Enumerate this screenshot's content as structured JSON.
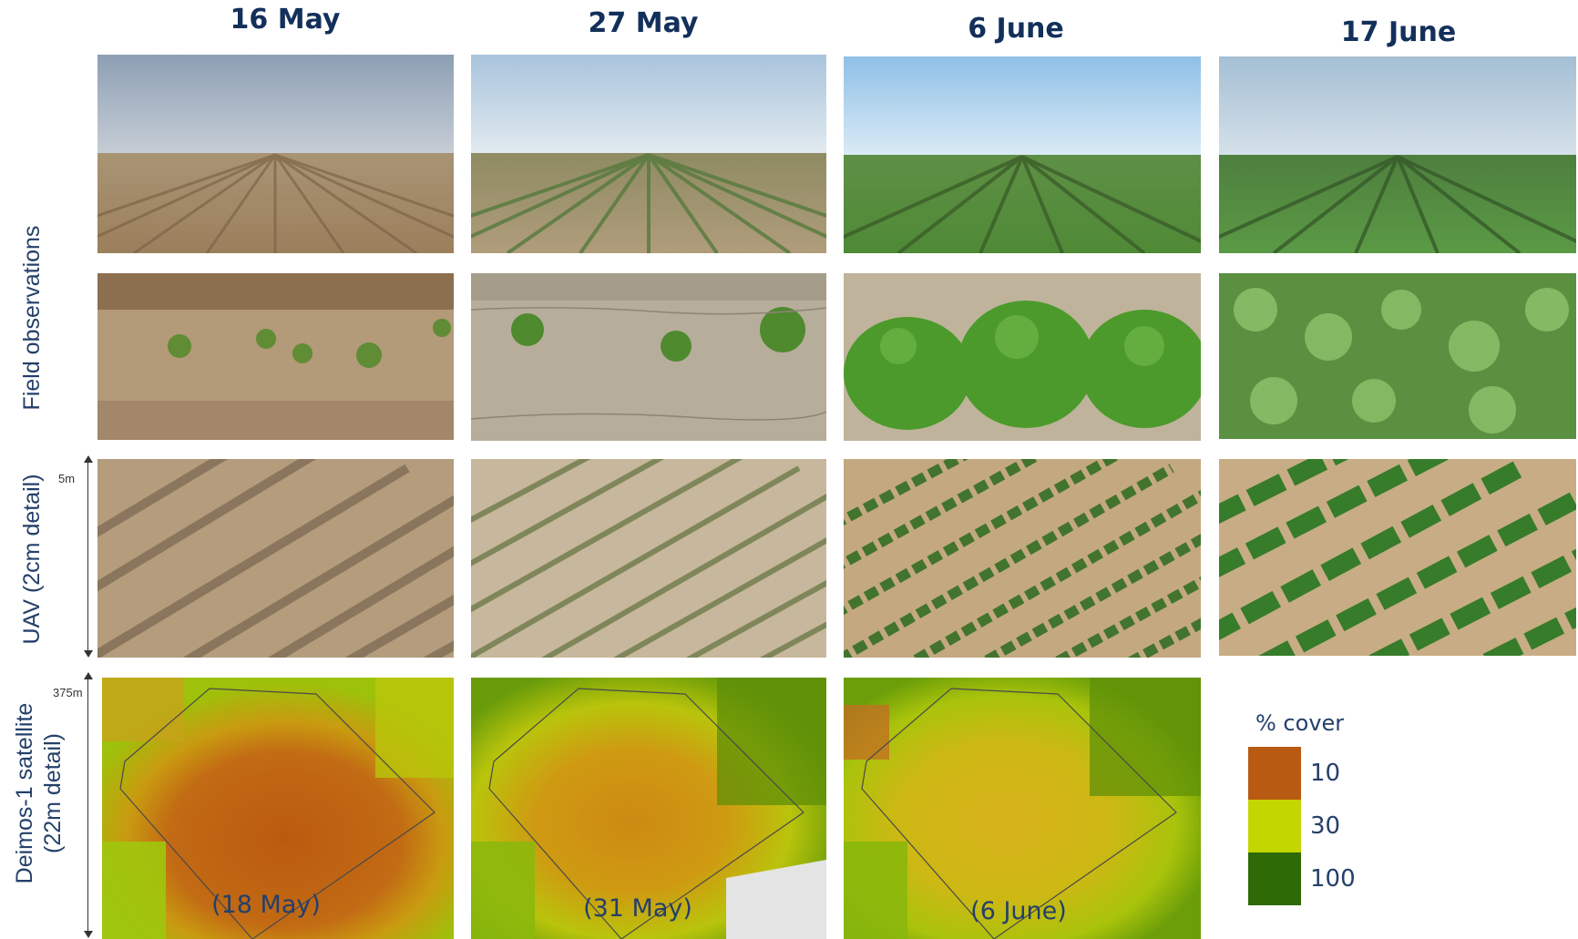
{
  "columns": [
    {
      "date": "16 May"
    },
    {
      "date": "27 May"
    },
    {
      "date": "6 June"
    },
    {
      "date": "17 June"
    }
  ],
  "rows": {
    "field": "Field observations",
    "uav": "UAV (2cm detail)",
    "sat_line1": "Deimos-1 satellite",
    "sat_line2": "(22m detail)"
  },
  "scales": {
    "uav": "5m",
    "sat": "375m"
  },
  "satellite_captions": [
    "(18 May)",
    "(31 May)",
    "(6 June)"
  ],
  "legend": {
    "title": "% cover",
    "items": [
      {
        "value": "10",
        "color": "#b85a12"
      },
      {
        "value": "30",
        "color": "#c3d600"
      },
      {
        "value": "100",
        "color": "#2e6a06"
      }
    ]
  }
}
